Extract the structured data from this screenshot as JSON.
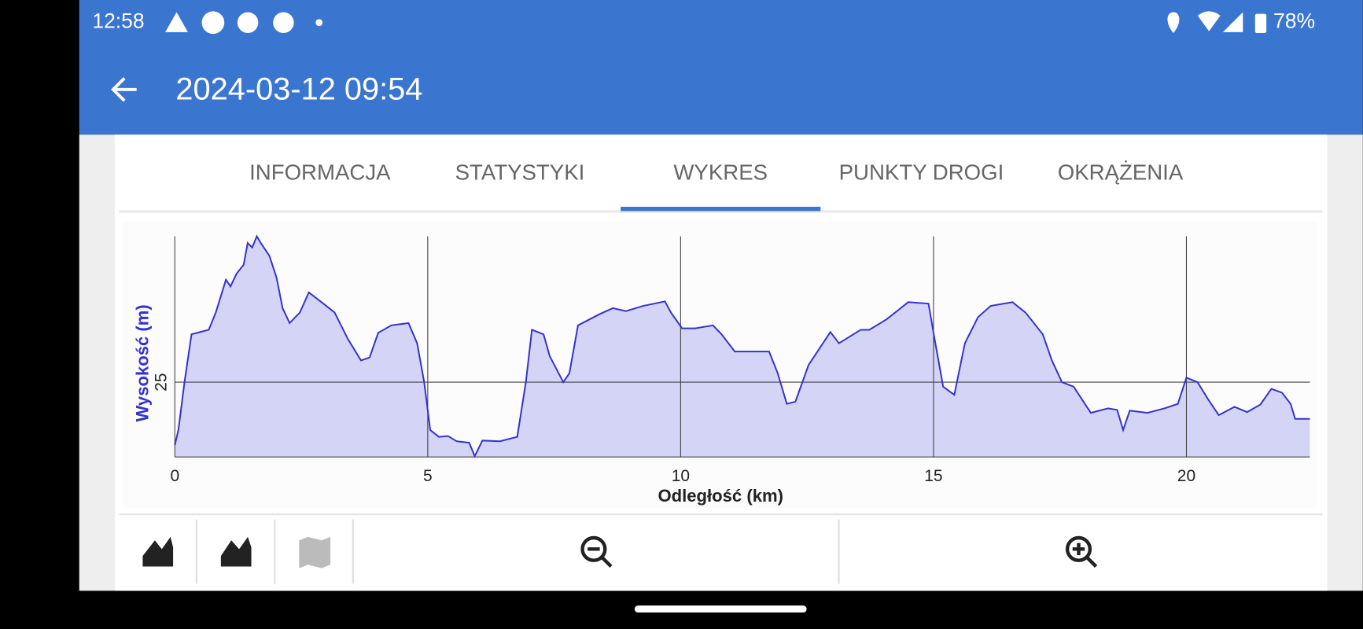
{
  "status_bar": {
    "time": "12:58",
    "battery": "78%"
  },
  "app_bar": {
    "title": "2024-03-12 09:54"
  },
  "tabs": [
    "INFORMACJA",
    "STATYSTYKI",
    "WYKRES",
    "PUNKTY DROGI",
    "OKRĄŻENIA"
  ],
  "chart_data": {
    "type": "area",
    "xlabel": "Odległość (km)",
    "ylabel": "Wysokość (m)",
    "color": "#3333cc",
    "fill_color": "#d4d4f7",
    "grid": true,
    "xlim": [
      0,
      22.44
    ],
    "ylim": [
      15,
      44.5
    ],
    "xticks": [
      0,
      5,
      10,
      15,
      20
    ],
    "yticks": [
      25
    ],
    "x": [
      0,
      0.07,
      0.19,
      0.33,
      0.67,
      0.81,
      1.01,
      1.1,
      1.22,
      1.36,
      1.44,
      1.53,
      1.62,
      1.7,
      1.87,
      2.01,
      2.13,
      2.27,
      2.47,
      2.65,
      2.9,
      3.16,
      3.42,
      3.68,
      3.85,
      4.02,
      4.28,
      4.62,
      4.79,
      4.93,
      5.05,
      5.22,
      5.4,
      5.57,
      5.82,
      5.93,
      6.08,
      6.43,
      6.77,
      6.94,
      7.06,
      7.29,
      7.41,
      7.68,
      7.8,
      7.97,
      8.4,
      8.66,
      8.92,
      9.26,
      9.69,
      9.81,
      10.03,
      10.29,
      10.64,
      10.81,
      11.07,
      11.75,
      11.92,
      12.1,
      12.27,
      12.53,
      12.96,
      13.13,
      13.56,
      13.73,
      14.07,
      14.5,
      14.9,
      15.02,
      15.19,
      15.41,
      15.62,
      15.88,
      16.13,
      16.56,
      16.82,
      17.16,
      17.34,
      17.54,
      17.77,
      18.11,
      18.45,
      18.63,
      18.75,
      18.88,
      19.23,
      19.57,
      19.83,
      20,
      20.22,
      20.43,
      20.64,
      20.95,
      21.2,
      21.46,
      21.68,
      21.89,
      22.06,
      22.15,
      22.44
    ],
    "values": [
      16.6,
      18.6,
      25,
      31.4,
      32,
      34.3,
      38.7,
      37.8,
      39.5,
      40.7,
      43.6,
      43,
      44.5,
      43.6,
      41.9,
      39,
      34.9,
      32.9,
      34.3,
      37,
      35.7,
      34.3,
      30.8,
      27.9,
      28.3,
      31.6,
      32.6,
      32.9,
      30.2,
      25,
      18.6,
      17.7,
      17.8,
      17.1,
      16.9,
      15.1,
      17.2,
      17.1,
      17.7,
      25,
      32,
      31.4,
      28.5,
      25,
      26.2,
      32.6,
      34.1,
      34.9,
      34.5,
      35.2,
      35.8,
      34.3,
      32.2,
      32.2,
      32.6,
      31.4,
      29.1,
      29.1,
      26.2,
      22.1,
      22.4,
      27.3,
      31.7,
      30.2,
      32,
      32,
      33.4,
      35.7,
      35.5,
      30.8,
      24.4,
      23.3,
      30.2,
      33.7,
      35.2,
      35.7,
      34.3,
      31.4,
      27.9,
      25,
      24.4,
      20.9,
      21.5,
      21.3,
      18.6,
      21.2,
      20.9,
      21.5,
      22.1,
      25.6,
      25,
      22.7,
      20.6,
      21.7,
      21,
      22,
      24.1,
      23.6,
      22.1,
      20.1,
      20.1
    ]
  }
}
